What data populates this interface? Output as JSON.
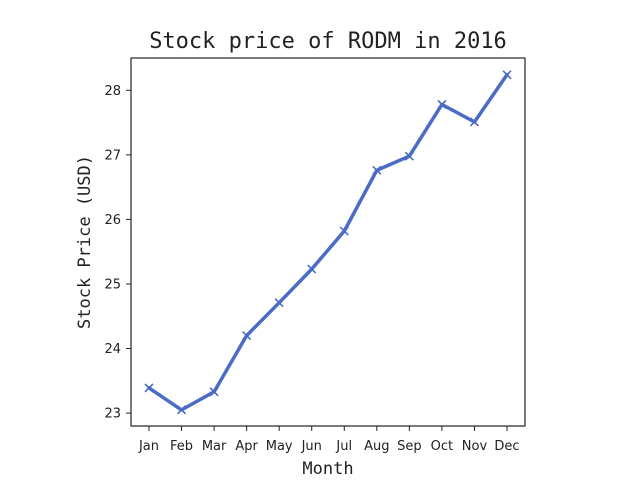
{
  "chart_data": {
    "type": "line",
    "title": "Stock price of RODM in 2016",
    "xlabel": "Month",
    "ylabel": "Stock Price (USD)",
    "categories": [
      "Jan",
      "Feb",
      "Mar",
      "Apr",
      "May",
      "Jun",
      "Jul",
      "Aug",
      "Sep",
      "Oct",
      "Nov",
      "Dec"
    ],
    "series": [
      {
        "values": [
          23.39,
          23.05,
          23.33,
          24.2,
          24.71,
          25.23,
          25.82,
          26.76,
          26.98,
          27.78,
          27.51,
          28.24
        ],
        "color": "#4a6bc6",
        "marker": "x"
      }
    ],
    "ylim": [
      22.8,
      28.5
    ],
    "yticks": [
      23,
      24,
      25,
      26,
      27,
      28
    ],
    "grid": false
  }
}
